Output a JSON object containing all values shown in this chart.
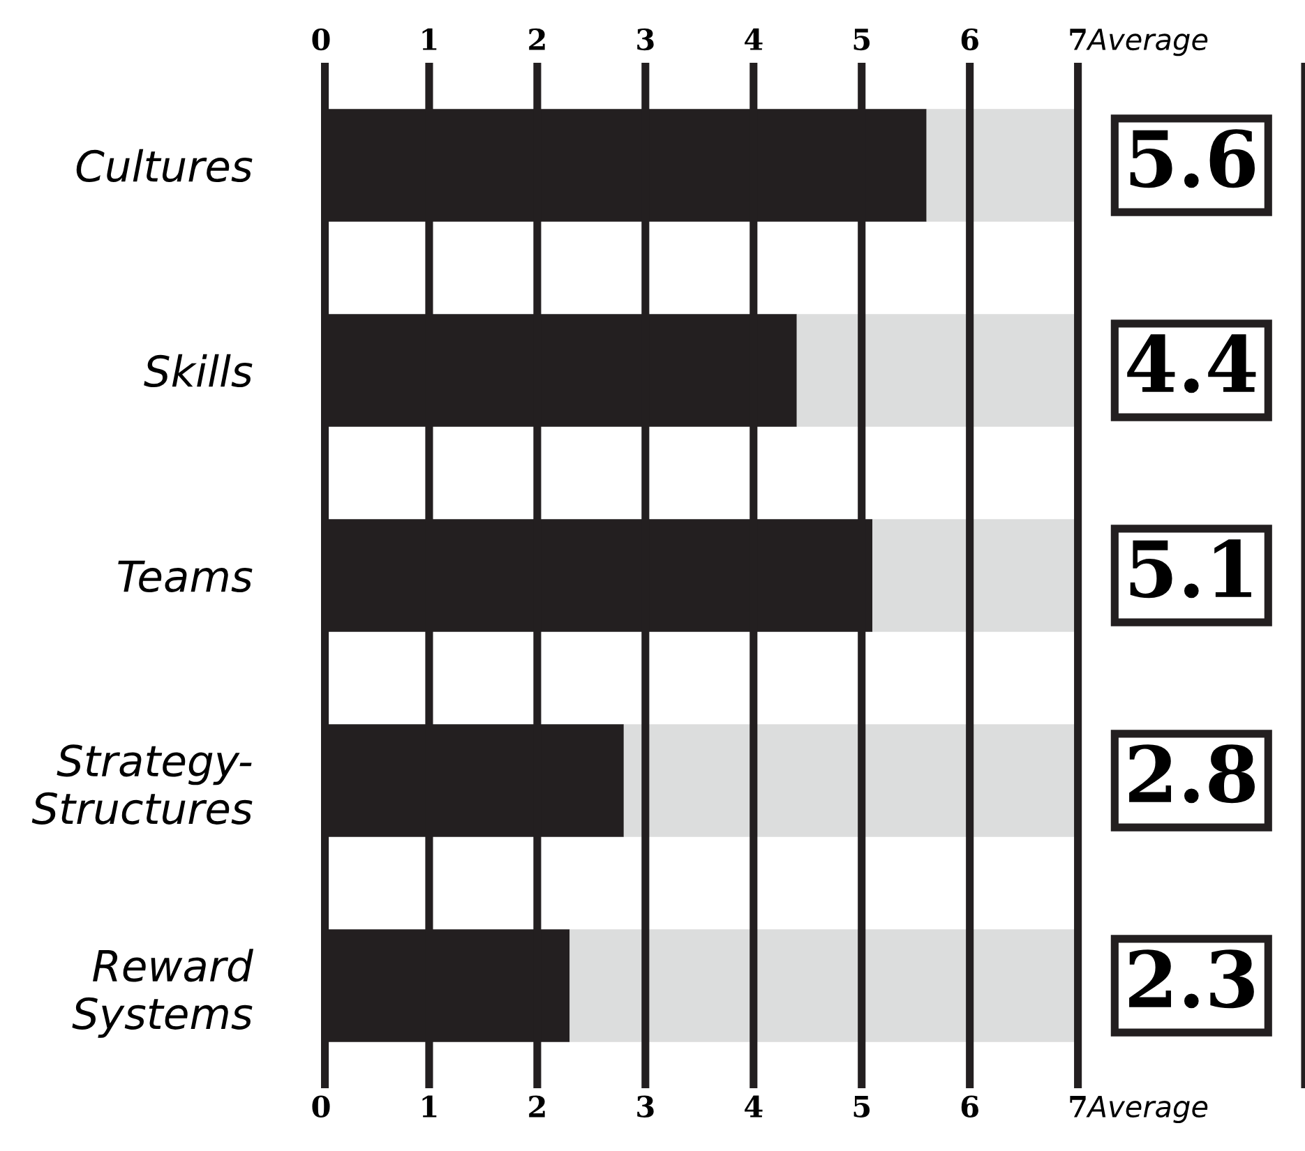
{
  "chart_data": {
    "type": "bar",
    "orientation": "horizontal",
    "stacked": true,
    "categories": [
      "Cultures",
      "Skills",
      "Teams",
      "Strategy-\nStructures",
      "Reward\nSystems"
    ],
    "series": [
      {
        "color": "#231f20",
        "values": [
          5.6,
          4.4,
          5.1,
          2.8,
          2.3
        ]
      },
      {
        "color": "#dcdddd",
        "values": [
          1.4,
          2.6,
          1.9,
          4.2,
          4.7
        ]
      }
    ],
    "xlim": [
      0,
      9.1
    ],
    "xticks": [
      0,
      1,
      2,
      3,
      4,
      5,
      6,
      7,
      {
        "value": 7.65,
        "label": "Average"
      }
    ],
    "x2lim": [
      0,
      9.1
    ],
    "x2ticks": [
      0,
      1,
      2,
      3,
      4,
      5,
      6,
      7,
      {
        "value": 7.65,
        "label": "Average"
      }
    ],
    "grid": "x",
    "annotations": [
      "5.6",
      "4.4",
      "5.1",
      "2.8",
      "2.3"
    ]
  }
}
